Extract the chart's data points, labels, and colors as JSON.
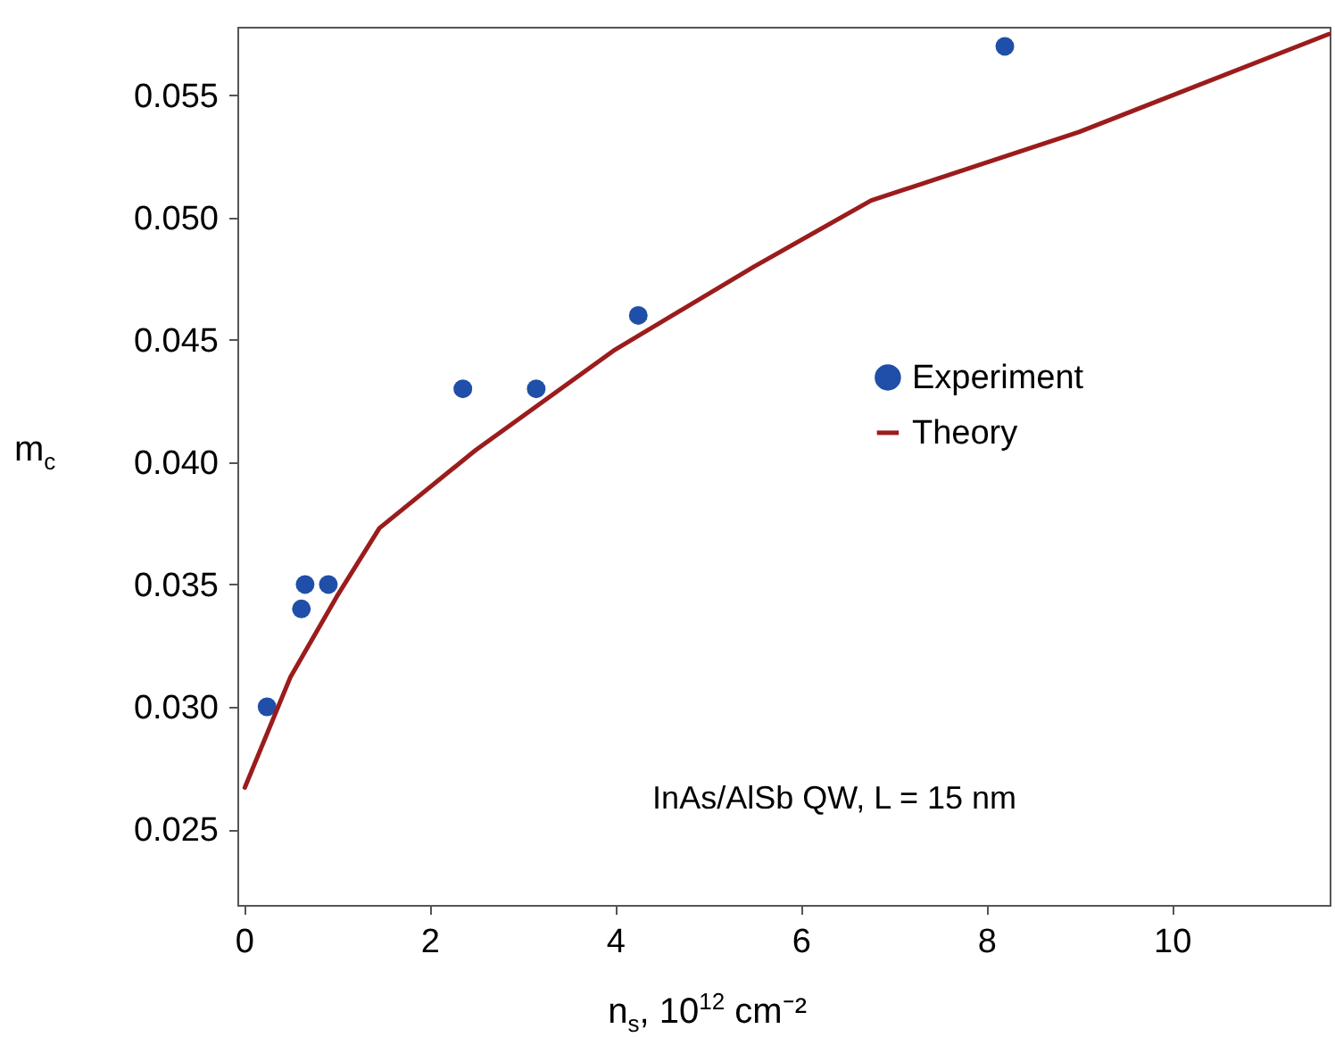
{
  "chart_data": {
    "type": "scatter",
    "xlabel": "n$_{s}$, 10$^{12}$ cm⁻²",
    "ylabel": "m$_{c}$",
    "xlim": [
      -0.07,
      11.7
    ],
    "xticks": [
      0,
      2,
      4,
      6,
      8,
      10
    ],
    "ylim": [
      0.0219,
      0.0578
    ],
    "yticks": [
      0.025,
      {
        "value": 0.03,
        "label": "0.030"
      },
      0.035,
      {
        "value": 0.04,
        "label": "0.040"
      },
      0.045,
      {
        "value": 0.05,
        "label": "0.050"
      },
      0.055
    ],
    "grid": false,
    "legend": "right",
    "annotations": [
      "InAs/AlSb  QW, L = 15 nm"
    ],
    "series": [
      {
        "name": "Experiment",
        "marker": "circle",
        "color": "#1f4fa8",
        "x": [
          0.25,
          0.62,
          0.66,
          0.91,
          2.36,
          3.15,
          4.25,
          8.2
        ],
        "values": [
          0.03,
          0.034,
          0.035,
          0.035,
          0.043,
          0.043,
          0.046,
          0.057
        ]
      },
      {
        "name": "Theory",
        "type": "line",
        "color": "#9b1c1c",
        "line_style": "solid",
        "marker": "none",
        "x": [
          0.01,
          0.5,
          1.0,
          1.46,
          2.5,
          4.0,
          5.5,
          6.76,
          9.0,
          11.69
        ],
        "values": [
          0.0267,
          0.0312,
          0.0345,
          0.0373,
          0.0405,
          0.0446,
          0.048,
          0.0507,
          0.0535,
          0.0575
        ]
      }
    ]
  }
}
